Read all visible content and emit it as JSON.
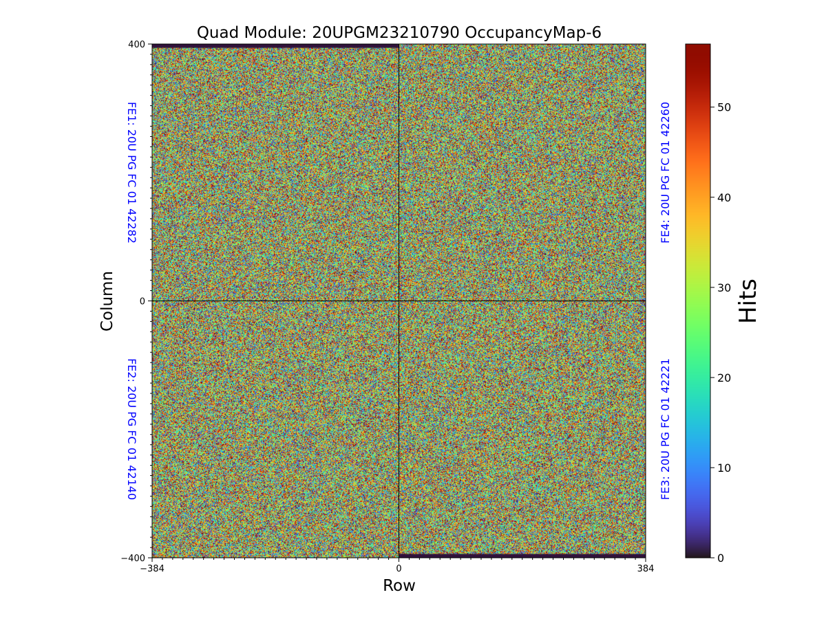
{
  "chart_data": {
    "type": "heatmap",
    "title": "Quad Module: 20UPGM23210790 OccupancyMap-6",
    "xlabel": "Row",
    "ylabel": "Column",
    "xlim": [
      -384,
      384
    ],
    "ylim": [
      -400,
      400
    ],
    "x_ticks": [
      {
        "value": -384,
        "label": "−384"
      },
      {
        "value": 0,
        "label": "0"
      },
      {
        "value": 384,
        "label": "384"
      }
    ],
    "y_ticks": [
      {
        "value": 400,
        "label": "400"
      },
      {
        "value": 0,
        "label": "0"
      },
      {
        "value": -400,
        "label": "−400"
      }
    ],
    "divider_lines": {
      "x": 0,
      "y": 0
    },
    "quadrants": [
      {
        "name": "FE1",
        "label": "FE1: 20U PG FC 01 42282",
        "x_range": [
          -384,
          0
        ],
        "y_range": [
          0,
          400
        ],
        "label_side": "left",
        "dead_band": {
          "y_range": [
            394,
            400
          ]
        }
      },
      {
        "name": "FE4",
        "label": "FE4: 20U PG FC 01 42260",
        "x_range": [
          0,
          384
        ],
        "y_range": [
          0,
          400
        ],
        "label_side": "right"
      },
      {
        "name": "FE2",
        "label": "FE2: 20U PG FC 01 42140",
        "x_range": [
          -384,
          0
        ],
        "y_range": [
          -400,
          0
        ],
        "label_side": "left"
      },
      {
        "name": "FE3",
        "label": "FE3: 20U PG FC 01 42221",
        "x_range": [
          0,
          384
        ],
        "y_range": [
          -400,
          0
        ],
        "label_side": "right",
        "dead_band": {
          "y_range": [
            -400,
            -394
          ]
        }
      }
    ],
    "distribution": "uniform random hits per pixel",
    "colorbar": {
      "label": "Hits",
      "colormap": "turbo",
      "range": [
        0,
        57
      ],
      "ticks": [
        {
          "value": 0,
          "label": "0"
        },
        {
          "value": 10,
          "label": "10"
        },
        {
          "value": 20,
          "label": "20"
        },
        {
          "value": 30,
          "label": "30"
        },
        {
          "value": 40,
          "label": "40"
        },
        {
          "value": 50,
          "label": "50"
        }
      ]
    }
  },
  "colors": {
    "fe_label": "#0000ff",
    "axis": "#000000",
    "dead_band": "#30123b"
  }
}
